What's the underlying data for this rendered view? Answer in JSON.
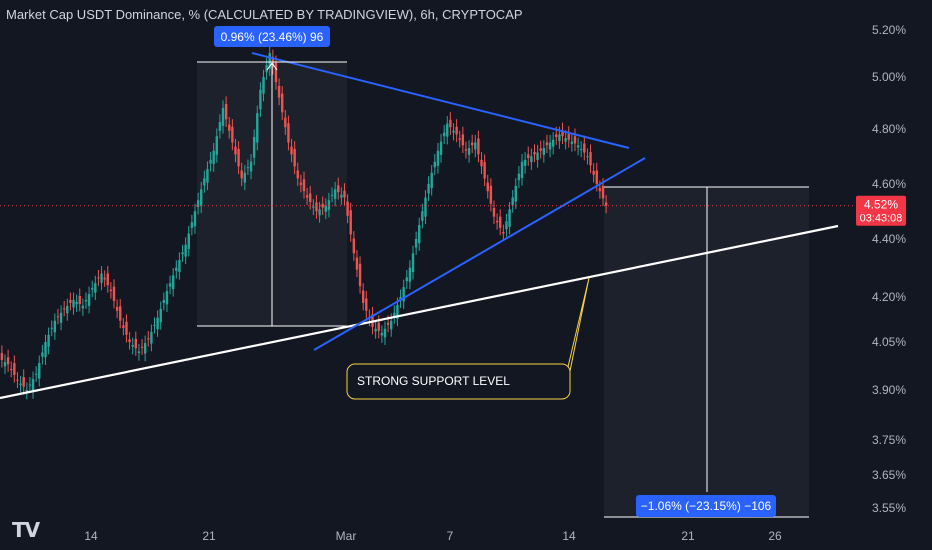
{
  "header": {
    "title": "Market Cap USDT Dominance, % (CALCULATED BY TRADINGVIEW), 6h, CRYPTOCAP"
  },
  "colors": {
    "background": "#131722",
    "up": "#26a69a",
    "down": "#ef5350",
    "trendline": "#2962ff",
    "support": "#ffffff",
    "callout_border": "#f7d046",
    "label_bg": "#2962ff",
    "price_label_bg": "#f23645"
  },
  "chart_data": {
    "type": "candlestick",
    "title": "Market Cap USDT Dominance, % (CALCULATED BY TRADINGVIEW), 6h, CRYPTOCAP",
    "y_axis": {
      "scale": "log",
      "ticks": [
        "5.20%",
        "5.00%",
        "4.80%",
        "4.60%",
        "4.40%",
        "4.20%",
        "4.05%",
        "3.90%",
        "3.75%",
        "3.65%",
        "3.55%"
      ],
      "range": [
        3.53,
        5.25
      ]
    },
    "x_axis": {
      "ticks": [
        "14",
        "21",
        "Mar",
        "7",
        "14",
        "21",
        "26"
      ]
    },
    "grid": false,
    "current_price": {
      "value": "4.52%",
      "countdown": "03:43:08",
      "numeric": 4.52
    },
    "closes_approx": [
      3.98,
      3.93,
      3.9,
      3.95,
      4.05,
      4.12,
      4.16,
      4.19,
      4.17,
      4.23,
      4.28,
      4.22,
      4.12,
      4.05,
      4.02,
      4.06,
      4.13,
      4.22,
      4.3,
      4.38,
      4.5,
      4.62,
      4.72,
      4.88,
      4.75,
      4.62,
      4.68,
      4.95,
      5.1,
      4.92,
      4.75,
      4.62,
      4.55,
      4.5,
      4.52,
      4.58,
      4.55,
      4.35,
      4.18,
      4.1,
      4.08,
      4.12,
      4.2,
      4.3,
      4.45,
      4.6,
      4.72,
      4.82,
      4.78,
      4.72,
      4.75,
      4.62,
      4.48,
      4.42,
      4.55,
      4.68,
      4.7,
      4.72,
      4.75,
      4.78,
      4.76,
      4.74,
      4.7,
      4.6,
      4.52
    ],
    "annotations": [
      {
        "type": "measure",
        "label": "0.96% (23.46%) 96",
        "from": 4.1,
        "to": 5.06
      },
      {
        "type": "measure",
        "label": "−1.06% (−23.15%) −106",
        "from": 4.6,
        "to": 3.54
      },
      {
        "type": "callout",
        "text": "STRONG SUPPORT LEVEL"
      },
      {
        "type": "trendline",
        "name": "triangle-upper"
      },
      {
        "type": "trendline",
        "name": "triangle-lower"
      },
      {
        "type": "trendline",
        "name": "support"
      }
    ]
  },
  "measure_up": {
    "label": "0.96% (23.46%) 96"
  },
  "measure_down": {
    "label": "−1.06% (−23.15%) −106"
  },
  "callout": {
    "text": "STRONG SUPPORT LEVEL"
  },
  "price_label": {
    "value": "4.52%",
    "countdown": "03:43:08"
  },
  "logo": {
    "text": "TV"
  }
}
